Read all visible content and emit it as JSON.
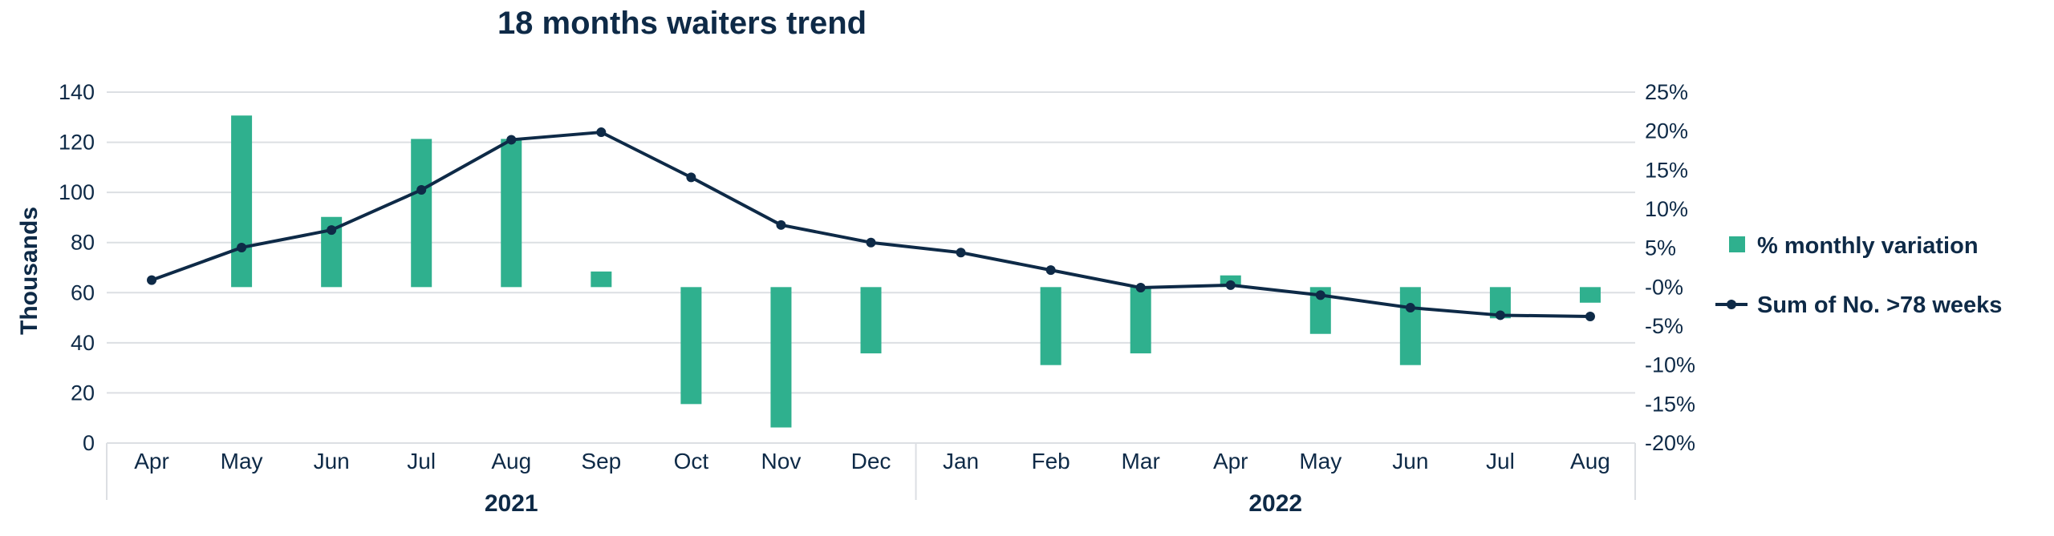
{
  "colors": {
    "bar": "#2fb08e",
    "line": "#0e2a47",
    "text": "#0e2a47",
    "grid": "#dcdfe3"
  },
  "chart_data": {
    "type": "bar+line",
    "title": "18 months waiters trend",
    "ylabel_left": "Thousands",
    "categories": [
      "Apr",
      "May",
      "Jun",
      "Jul",
      "Aug",
      "Sep",
      "Oct",
      "Nov",
      "Dec",
      "Jan",
      "Feb",
      "Mar",
      "Apr",
      "May",
      "Jun",
      "Jul",
      "Aug"
    ],
    "years": [
      {
        "label": "2021",
        "span": 9
      },
      {
        "label": "2022",
        "span": 8
      }
    ],
    "left_axis": {
      "ylim": [
        0,
        140
      ],
      "ticks": [
        0,
        20,
        40,
        60,
        80,
        100,
        120,
        140
      ],
      "tick_labels": [
        "0",
        "20",
        "40",
        "60",
        "80",
        "100",
        "120",
        "140"
      ]
    },
    "right_axis": {
      "ylim": [
        -20,
        25
      ],
      "ticks": [
        -20,
        -15,
        -10,
        -5,
        0,
        5,
        10,
        15,
        20,
        25
      ],
      "tick_labels": [
        "-20%",
        "-15%",
        "-10%",
        "-5%",
        "-0%",
        "5%",
        "10%",
        "15%",
        "20%",
        "25%"
      ]
    },
    "series": [
      {
        "name": "% monthly variation",
        "type": "bar",
        "axis": "right",
        "values": [
          null,
          22,
          9,
          19,
          19,
          2,
          -15,
          -18,
          -8.5,
          null,
          -10,
          -8.5,
          1.5,
          -6,
          -10,
          -4,
          -2
        ]
      },
      {
        "name": "Sum of No. >78 weeks",
        "type": "line",
        "axis": "left",
        "values": [
          65,
          78,
          85,
          101,
          121,
          124,
          106,
          87,
          80,
          76,
          69,
          62,
          63,
          59,
          54,
          51,
          50.5
        ]
      }
    ],
    "grid": true,
    "legend_position": "right"
  }
}
